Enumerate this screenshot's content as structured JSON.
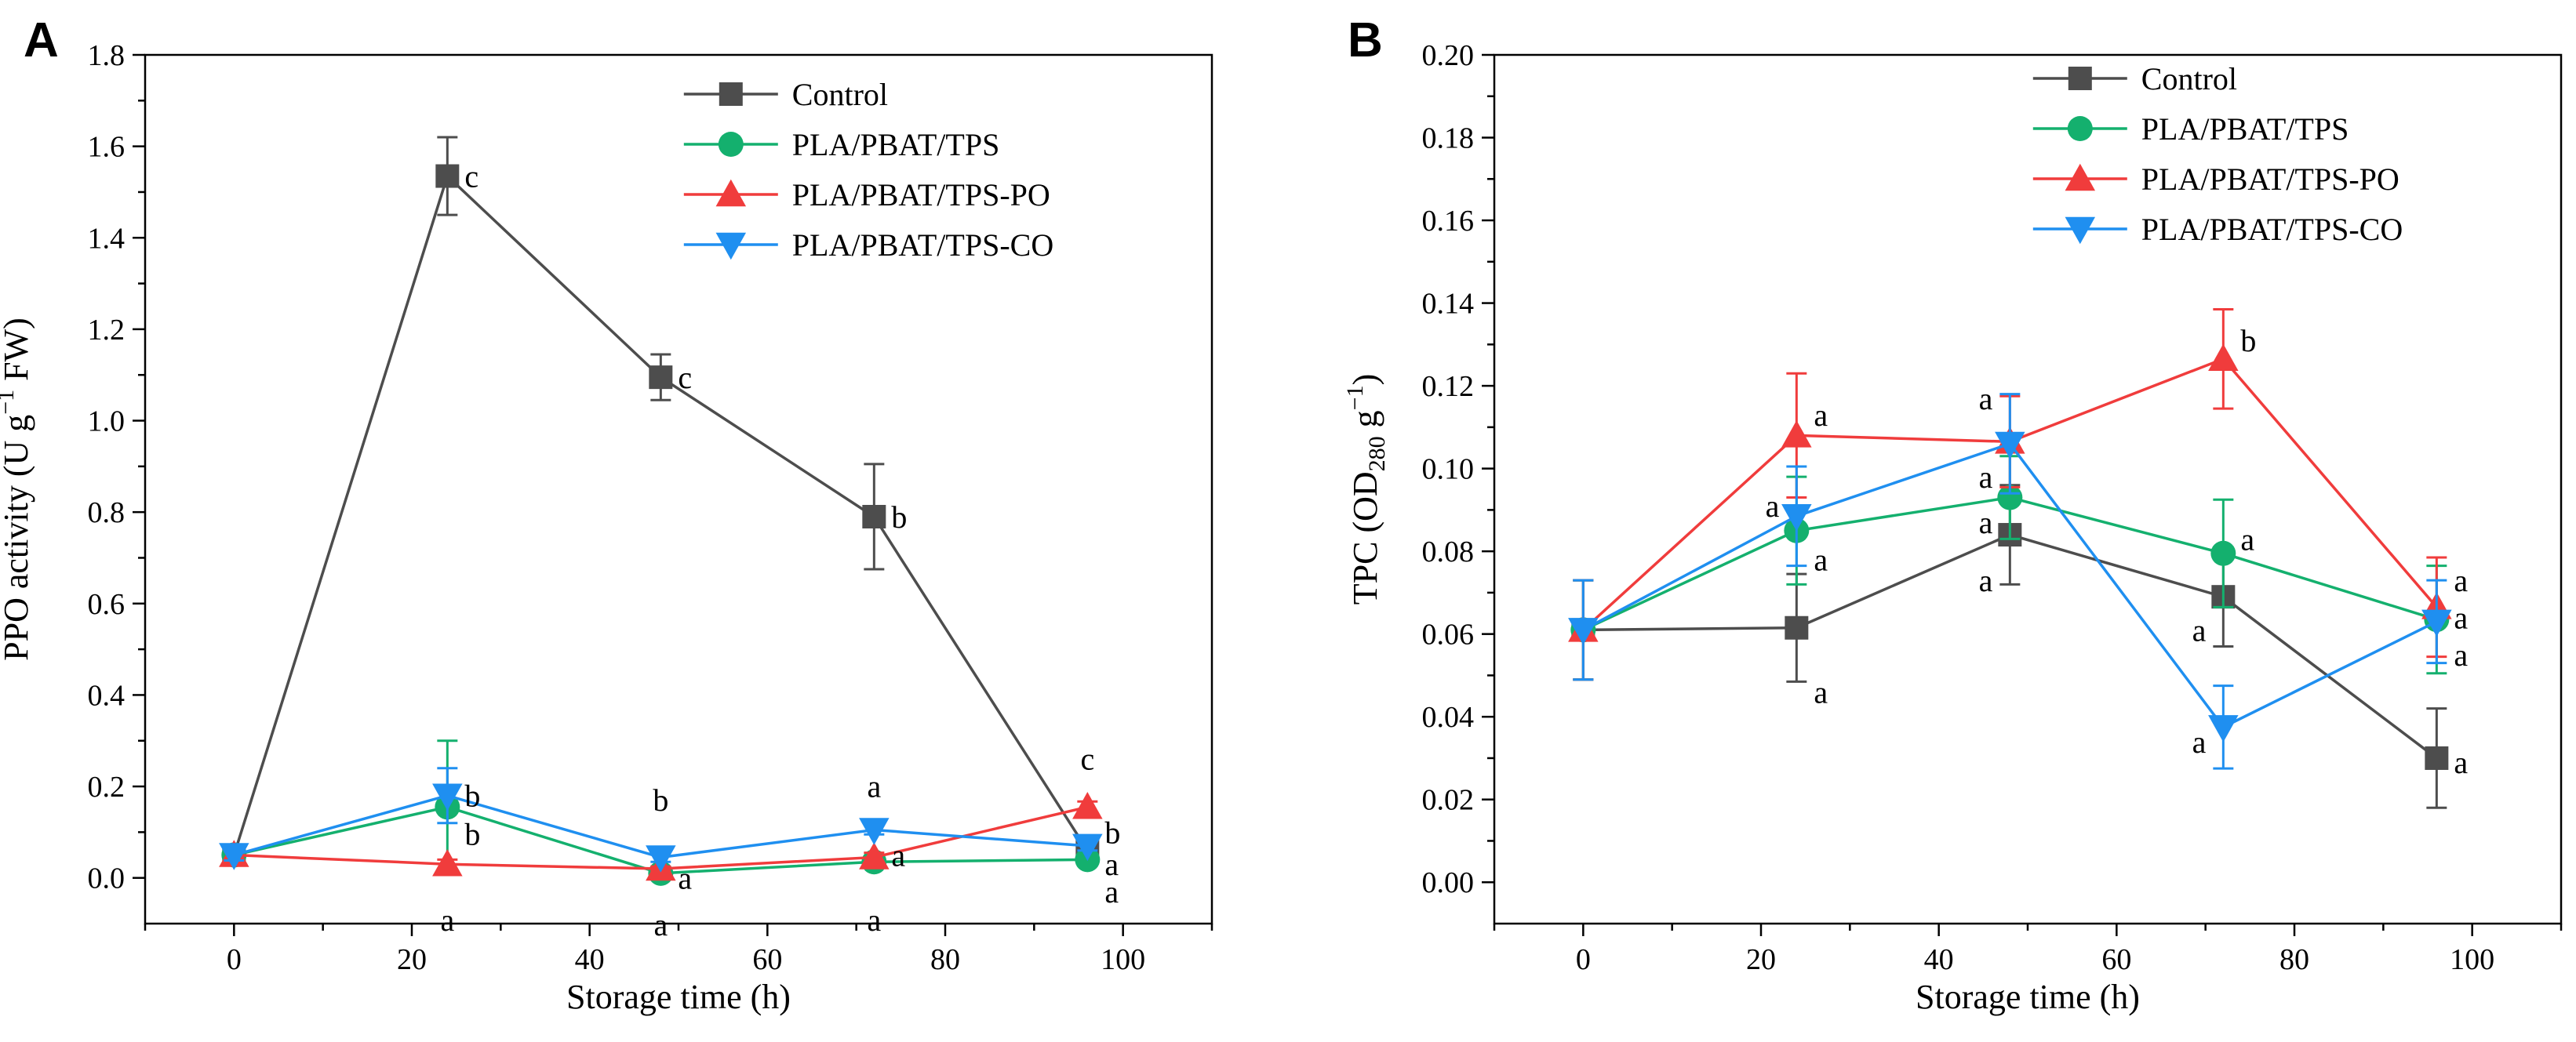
{
  "colors": {
    "Control": "#4d4d4d",
    "PLA/PBAT/TPS": "#14b06e",
    "PLA/PBAT/TPS-PO": "#f03c3c",
    "PLA/PBAT/TPS-CO": "#1f8ff0"
  },
  "chart_data": [
    {
      "panel": "A",
      "type": "line",
      "xlabel": "Storage time (h)",
      "ylabel": {
        "main": "PPO activity (U g",
        "sup": "−1",
        "tail": " FW)"
      },
      "xlim": [
        -10,
        110
      ],
      "ylim": [
        -0.1,
        1.8
      ],
      "xticks": [
        0,
        20,
        40,
        60,
        80,
        100
      ],
      "yticks": [
        0.0,
        0.2,
        0.4,
        0.6,
        0.8,
        1.0,
        1.2,
        1.4,
        1.6,
        1.8
      ],
      "ytick_labels": [
        "0.0",
        "0.2",
        "0.4",
        "0.6",
        "0.8",
        "1.0",
        "1.2",
        "1.4",
        "1.6",
        "1.8"
      ],
      "x": [
        0,
        24,
        48,
        72,
        96
      ],
      "series": [
        {
          "name": "Control",
          "marker": "square",
          "values": [
            0.05,
            1.535,
            1.095,
            0.79,
            0.06
          ],
          "errors": [
            0.01,
            0.085,
            0.05,
            0.115,
            0.01
          ]
        },
        {
          "name": "PLA/PBAT/TPS",
          "marker": "circle",
          "values": [
            0.05,
            0.155,
            0.01,
            0.035,
            0.04
          ],
          "errors": [
            0.01,
            0.145,
            0.005,
            0.01,
            0.008
          ]
        },
        {
          "name": "PLA/PBAT/TPS-PO",
          "marker": "triangle-up",
          "values": [
            0.05,
            0.03,
            0.02,
            0.045,
            0.155
          ],
          "errors": [
            0.008,
            0.01,
            0.005,
            0.01,
            0.012
          ]
        },
        {
          "name": "PLA/PBAT/TPS-CO",
          "marker": "triangle-down",
          "values": [
            0.05,
            0.18,
            0.045,
            0.105,
            0.07
          ],
          "errors": [
            0.012,
            0.06,
            0.01,
            0.01,
            0.01
          ]
        }
      ],
      "annotations": [
        {
          "x": 24,
          "y": 1.535,
          "text": "c",
          "pos": "right"
        },
        {
          "x": 48,
          "y": 1.095,
          "text": "c",
          "pos": "right"
        },
        {
          "x": 72,
          "y": 0.79,
          "text": "b",
          "pos": "right"
        },
        {
          "x": 24,
          "y": 0.18,
          "text": "b",
          "pos": "right"
        },
        {
          "x": 24,
          "y": 0.12,
          "text": "b",
          "pos": "right-low"
        },
        {
          "x": 24,
          "y": -0.03,
          "text": "a",
          "pos": "below"
        },
        {
          "x": 48,
          "y": 0.13,
          "text": "b",
          "pos": "above"
        },
        {
          "x": 48,
          "y": 0.0,
          "text": "a",
          "pos": "right"
        },
        {
          "x": 48,
          "y": -0.04,
          "text": "a",
          "pos": "below"
        },
        {
          "x": 72,
          "y": 0.16,
          "text": "a",
          "pos": "above"
        },
        {
          "x": 72,
          "y": 0.05,
          "text": "a",
          "pos": "right"
        },
        {
          "x": 72,
          "y": -0.03,
          "text": "a",
          "pos": "below"
        },
        {
          "x": 96,
          "y": 0.22,
          "text": "c",
          "pos": "above"
        },
        {
          "x": 96,
          "y": 0.1,
          "text": "b",
          "pos": "right"
        },
        {
          "x": 96,
          "y": 0.03,
          "text": "a",
          "pos": "right"
        },
        {
          "x": 96,
          "y": -0.03,
          "text": "a",
          "pos": "right"
        }
      ],
      "legend": {
        "placement": "top-right",
        "entries": [
          "Control",
          "PLA/PBAT/TPS",
          "PLA/PBAT/TPS-PO",
          "PLA/PBAT/TPS-CO"
        ]
      }
    },
    {
      "panel": "B",
      "type": "line",
      "xlabel": "Storage time (h)",
      "ylabel": {
        "main": "TPC (OD",
        "sub": "280",
        "mid": " g",
        "sup": "−1",
        "tail": ")"
      },
      "xlim": [
        -10,
        110
      ],
      "ylim": [
        -0.01,
        0.2
      ],
      "xticks": [
        0,
        20,
        40,
        60,
        80,
        100
      ],
      "yticks": [
        0.0,
        0.02,
        0.04,
        0.06,
        0.08,
        0.1,
        0.12,
        0.14,
        0.16,
        0.18,
        0.2
      ],
      "ytick_labels": [
        "0.00",
        "0.02",
        "0.04",
        "0.06",
        "0.08",
        "0.10",
        "0.12",
        "0.14",
        "0.16",
        "0.18",
        "0.20"
      ],
      "x": [
        0,
        24,
        48,
        72,
        96
      ],
      "series": [
        {
          "name": "Control",
          "marker": "square",
          "values": [
            0.061,
            0.0615,
            0.084,
            0.069,
            0.03
          ],
          "errors": [
            0.012,
            0.013,
            0.012,
            0.012,
            0.012
          ]
        },
        {
          "name": "PLA/PBAT/TPS",
          "marker": "circle",
          "values": [
            0.061,
            0.085,
            0.093,
            0.0795,
            0.0635
          ],
          "errors": [
            0.012,
            0.013,
            0.01,
            0.013,
            0.013
          ]
        },
        {
          "name": "PLA/PBAT/TPS-PO",
          "marker": "triangle-up",
          "values": [
            0.061,
            0.108,
            0.1065,
            0.1265,
            0.0665
          ],
          "errors": [
            0.012,
            0.015,
            0.011,
            0.012,
            0.012
          ]
        },
        {
          "name": "PLA/PBAT/TPS-CO",
          "marker": "triangle-down",
          "values": [
            0.061,
            0.0885,
            0.106,
            0.0375,
            0.063
          ],
          "errors": [
            0.012,
            0.012,
            0.012,
            0.01,
            0.01
          ]
        }
      ],
      "annotations": [
        {
          "x": 24,
          "y": 0.113,
          "text": "a",
          "pos": "right"
        },
        {
          "x": 24,
          "y": 0.091,
          "text": "a",
          "pos": "left"
        },
        {
          "x": 24,
          "y": 0.078,
          "text": "a",
          "pos": "right"
        },
        {
          "x": 24,
          "y": 0.046,
          "text": "a",
          "pos": "right"
        },
        {
          "x": 48,
          "y": 0.117,
          "text": "a",
          "pos": "left"
        },
        {
          "x": 48,
          "y": 0.098,
          "text": "a",
          "pos": "left"
        },
        {
          "x": 48,
          "y": 0.087,
          "text": "a",
          "pos": "left"
        },
        {
          "x": 48,
          "y": 0.073,
          "text": "a",
          "pos": "left"
        },
        {
          "x": 72,
          "y": 0.131,
          "text": "b",
          "pos": "right"
        },
        {
          "x": 72,
          "y": 0.083,
          "text": "a",
          "pos": "right"
        },
        {
          "x": 72,
          "y": 0.061,
          "text": "a",
          "pos": "left"
        },
        {
          "x": 72,
          "y": 0.034,
          "text": "a",
          "pos": "left"
        },
        {
          "x": 96,
          "y": 0.073,
          "text": "a",
          "pos": "right"
        },
        {
          "x": 96,
          "y": 0.064,
          "text": "a",
          "pos": "right"
        },
        {
          "x": 96,
          "y": 0.055,
          "text": "a",
          "pos": "right"
        },
        {
          "x": 96,
          "y": 0.029,
          "text": "a",
          "pos": "right"
        }
      ],
      "legend": {
        "placement": "top-right",
        "entries": [
          "Control",
          "PLA/PBAT/TPS",
          "PLA/PBAT/TPS-PO",
          "PLA/PBAT/TPS-CO"
        ]
      }
    }
  ]
}
